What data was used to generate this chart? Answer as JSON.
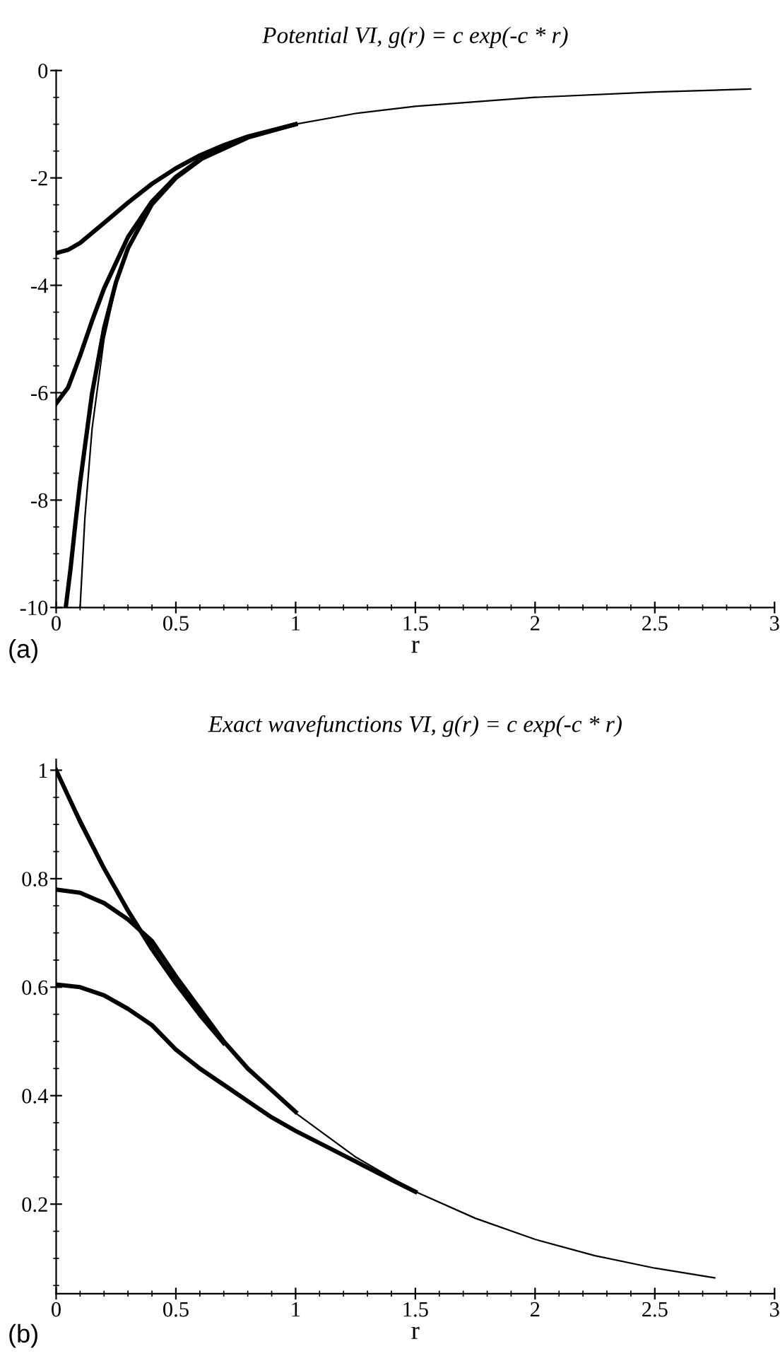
{
  "chart_data": [
    {
      "type": "line",
      "title": "Potential VI, g(r) = c exp(-c * r)",
      "xlabel": "r",
      "annotations": [
        "(a)"
      ],
      "xlim": [
        0,
        3
      ],
      "ylim": [
        -10,
        0
      ],
      "xticks": [
        0,
        0.5,
        1,
        1.5,
        2,
        2.5,
        3
      ],
      "yticks": [
        -10,
        -8,
        -6,
        -4,
        -2,
        0
      ],
      "grid": false,
      "legend": false,
      "tick_labels": true,
      "series": [
        {
          "color": "#000000",
          "x": [
            0,
            0.05,
            0.1,
            0.2,
            0.3,
            0.4,
            0.5,
            0.6,
            0.7,
            0.8,
            1.0
          ],
          "values": [
            -3.4,
            -3.34,
            -3.21,
            -2.84,
            -2.46,
            -2.11,
            -1.82,
            -1.58,
            -1.39,
            -1.23,
            -1.0
          ]
        },
        {
          "color": "#000000",
          "x": [
            0,
            0.05,
            0.1,
            0.15,
            0.2,
            0.3,
            0.4,
            0.5,
            0.6,
            0.8,
            1.0
          ],
          "values": [
            -6.2,
            -5.9,
            -5.31,
            -4.66,
            -4.06,
            -3.1,
            -2.44,
            -1.98,
            -1.66,
            -1.25,
            -1.0
          ]
        },
        {
          "color": "#000000",
          "x": [
            0.04,
            0.06,
            0.08,
            0.1,
            0.15,
            0.2,
            0.25,
            0.3,
            0.4,
            0.5,
            0.6
          ],
          "values": [
            -10.0,
            -9.28,
            -8.45,
            -7.67,
            -6.01,
            -4.8,
            -3.94,
            -3.31,
            -2.49,
            -2.0,
            -1.67
          ]
        },
        {
          "color": "#000000",
          "x": [
            0.1,
            0.12,
            0.15,
            0.2,
            0.25,
            0.3,
            0.4,
            0.5,
            0.6,
            0.8,
            1.0,
            1.25,
            1.5,
            2.0,
            2.5,
            2.9
          ],
          "values": [
            -10,
            -8.33,
            -6.67,
            -5,
            -4,
            -3.33,
            -2.5,
            -2,
            -1.67,
            -1.25,
            -1,
            -0.8,
            -0.667,
            -0.5,
            -0.4,
            -0.345
          ]
        }
      ]
    },
    {
      "type": "line",
      "title": "Exact wavefunctions VI, g(r) = c exp(-c * r)",
      "xlabel": "r",
      "annotations": [
        "(b)"
      ],
      "xlim": [
        0,
        3
      ],
      "ylim": [
        0.035,
        1.02
      ],
      "xticks": [
        0,
        0.5,
        1,
        1.5,
        2,
        2.5,
        3
      ],
      "yticks": [
        0.2,
        0.4,
        0.6,
        0.8,
        1
      ],
      "grid": false,
      "legend": false,
      "tick_labels": true,
      "series": [
        {
          "color": "#000000",
          "x": [
            0,
            0.1,
            0.2,
            0.3,
            0.4,
            0.5,
            0.6,
            0.7
          ],
          "values": [
            1.0,
            0.905,
            0.819,
            0.741,
            0.67,
            0.607,
            0.549,
            0.497
          ]
        },
        {
          "color": "#000000",
          "x": [
            0,
            0.1,
            0.2,
            0.3,
            0.4,
            0.5,
            0.6,
            0.7,
            0.8,
            0.9,
            1.0
          ],
          "values": [
            0.78,
            0.774,
            0.755,
            0.725,
            0.685,
            0.62,
            0.56,
            0.5,
            0.45,
            0.41,
            0.37
          ]
        },
        {
          "color": "#000000",
          "x": [
            0,
            0.1,
            0.2,
            0.3,
            0.4,
            0.5,
            0.6,
            0.7,
            0.8,
            0.9,
            1.0,
            1.2,
            1.4,
            1.5
          ],
          "values": [
            0.605,
            0.6,
            0.585,
            0.56,
            0.53,
            0.485,
            0.45,
            0.42,
            0.39,
            0.36,
            0.335,
            0.29,
            0.245,
            0.223
          ]
        },
        {
          "color": "#000000",
          "x": [
            0,
            0.25,
            0.5,
            0.75,
            1.0,
            1.25,
            1.5,
            1.75,
            2.0,
            2.25,
            2.5,
            2.75
          ],
          "values": [
            1.0,
            0.779,
            0.607,
            0.472,
            0.368,
            0.287,
            0.223,
            0.174,
            0.135,
            0.105,
            0.082,
            0.064
          ]
        }
      ]
    }
  ]
}
